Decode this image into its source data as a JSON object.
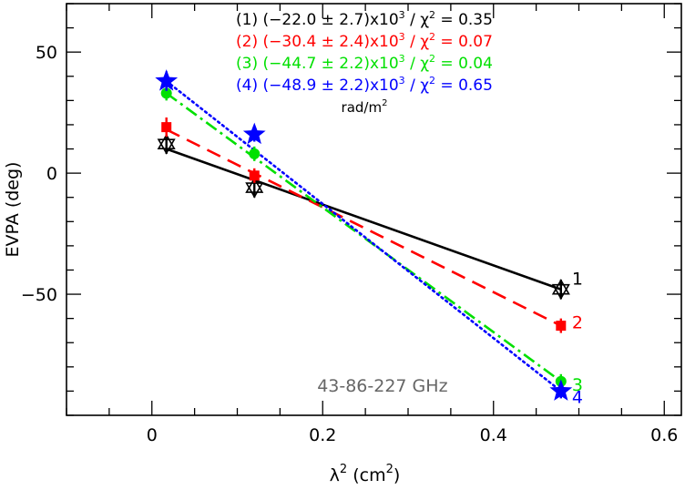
{
  "chart_data": {
    "type": "scatter",
    "title": "",
    "xlabel": "λ",
    "xlabel_sup": "2",
    "xlabel_unit_open": " (cm",
    "xlabel_unit_sup": "2",
    "xlabel_unit_close": ")",
    "ylabel": "EVPA (deg)",
    "xlim": [
      -0.1,
      0.62
    ],
    "ylim": [
      -100,
      70
    ],
    "xticks": [
      0,
      0.2,
      0.4,
      0.6
    ],
    "xtick_labels": [
      "0",
      "0.2",
      "0.4",
      "0.6"
    ],
    "yticks": [
      -50,
      0,
      50
    ],
    "ytick_labels": [
      "−50",
      "0",
      "50"
    ],
    "x_minor_step": 0.05,
    "y_minor_step": 10,
    "annotation": "43-86-227 GHz",
    "legend": [
      {
        "id": "(1)",
        "text": "(−22.0 ± 2.7)x10",
        "sup": "3",
        "chi": " / χ",
        "chi_sup": "2",
        "chi_val": " = 0.35",
        "color": "#000000"
      },
      {
        "id": "(2)",
        "text": "(−30.4 ± 2.4)x10",
        "sup": "3",
        "chi": " / χ",
        "chi_sup": "2",
        "chi_val": " = 0.07",
        "color": "#ff0000"
      },
      {
        "id": "(3)",
        "text": "(−44.7 ± 2.2)x10",
        "sup": "3",
        "chi": " / χ",
        "chi_sup": "2",
        "chi_val": " = 0.04",
        "color": "#00e000"
      },
      {
        "id": "(4)",
        "text": "(−48.9 ± 2.2)x10",
        "sup": "3",
        "chi": " / χ",
        "chi_sup": "2",
        "chi_val": " = 0.65",
        "color": "#0000ff"
      }
    ],
    "rm_unit": "rad/m",
    "rm_unit_sup": "2",
    "series": [
      {
        "name": "1",
        "color": "#000000",
        "marker": "star-of-david-open",
        "line": "solid",
        "points": [
          {
            "x": 0.017,
            "y": 12,
            "err": 4
          },
          {
            "x": 0.12,
            "y": -6,
            "err": 4
          },
          {
            "x": 0.479,
            "y": -48,
            "err": 4
          }
        ],
        "fit": {
          "x": [
            0.017,
            0.479
          ],
          "y": [
            10,
            -48
          ]
        }
      },
      {
        "name": "2",
        "color": "#ff0000",
        "marker": "square",
        "line": "dashed",
        "points": [
          {
            "x": 0.017,
            "y": 19,
            "err": 4
          },
          {
            "x": 0.12,
            "y": -1,
            "err": 3
          },
          {
            "x": 0.479,
            "y": -63,
            "err": 3
          }
        ],
        "fit": {
          "x": [
            0.017,
            0.479
          ],
          "y": [
            18,
            -63
          ]
        }
      },
      {
        "name": "3",
        "color": "#00e000",
        "marker": "circle",
        "line": "dashdot",
        "points": [
          {
            "x": 0.017,
            "y": 33,
            "err": 3
          },
          {
            "x": 0.12,
            "y": 8,
            "err": 3
          },
          {
            "x": 0.479,
            "y": -86,
            "err": 3
          }
        ],
        "fit": {
          "x": [
            0.017,
            0.479
          ],
          "y": [
            33,
            -86
          ]
        }
      },
      {
        "name": "4",
        "color": "#0000ff",
        "marker": "star",
        "line": "dotted",
        "points": [
          {
            "x": 0.017,
            "y": 38,
            "err": 4
          },
          {
            "x": 0.12,
            "y": 16,
            "err": 3
          },
          {
            "x": 0.479,
            "y": -90,
            "err": 3
          }
        ],
        "fit": {
          "x": [
            0.017,
            0.479
          ],
          "y": [
            38,
            -90
          ]
        }
      }
    ],
    "end_labels": [
      {
        "text": "1",
        "color": "#000000",
        "x": 0.479,
        "y": -48
      },
      {
        "text": "2",
        "color": "#ff0000",
        "x": 0.479,
        "y": -63
      },
      {
        "text": "3",
        "color": "#00e000",
        "x": 0.479,
        "y": -86
      },
      {
        "text": "4",
        "color": "#0000ff",
        "x": 0.479,
        "y": -90
      }
    ]
  }
}
